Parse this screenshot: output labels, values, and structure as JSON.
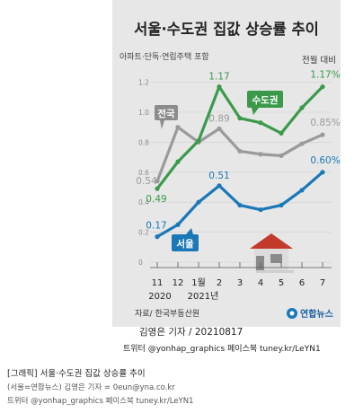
{
  "chart_data": {
    "type": "line",
    "title": "서울·수도권 집값 상승률 추이",
    "subtitle": "아파트·단독·연립주택 포함",
    "unit_note": "전월 대비",
    "source": "자료/ 한국부동산원",
    "logo_text": "연합뉴스",
    "x_ticks": [
      "11",
      "12",
      "1월",
      "2",
      "3",
      "4",
      "5",
      "6",
      "7"
    ],
    "x_year_labels": [
      {
        "label": "2020",
        "index": 0
      },
      {
        "label": "2021년",
        "index": 2
      }
    ],
    "ylim": [
      0,
      1.2
    ],
    "y_ticks": [
      "0",
      "0.2",
      "0.4",
      "0.6",
      "0.8",
      "1.0",
      "1.2"
    ],
    "grid": true,
    "series": [
      {
        "name": "전국",
        "color": "#9a9a9a",
        "values": [
          0.54,
          0.9,
          0.8,
          0.89,
          0.74,
          0.72,
          0.71,
          0.79,
          0.85
        ],
        "labels": [
          "0.54",
          "",
          "",
          "0.89",
          "",
          "",
          "",
          "",
          "0.85%"
        ]
      },
      {
        "name": "수도권",
        "color": "#3a9a4a",
        "values": [
          0.49,
          0.67,
          0.81,
          1.17,
          0.96,
          0.93,
          0.86,
          1.03,
          1.17
        ],
        "labels": [
          "0.49",
          "",
          "",
          "1.17",
          "",
          "",
          "",
          "",
          "1.17%"
        ]
      },
      {
        "name": "서울",
        "color": "#1a78b8",
        "values": [
          0.17,
          0.25,
          0.4,
          0.51,
          0.38,
          0.35,
          0.38,
          0.48,
          0.6
        ],
        "labels": [
          "0.17",
          "",
          "",
          "0.51",
          "",
          "",
          "",
          "",
          "0.60%"
        ]
      }
    ]
  },
  "credit": {
    "name": "김영은 기자 / 20210817",
    "social": "트위터 @yonhap_graphics  페이스북 tuney.kr/LeYN1"
  },
  "caption": {
    "title": "[그래픽] 서울·수도권 집값 상승률 추이",
    "source": "(서울=연합뉴스) 김영은 기자 = 0eun@yna.co.kr",
    "social": "트위터 @yonhap_graphics 페이스북 tuney.kr/LeYN1"
  }
}
